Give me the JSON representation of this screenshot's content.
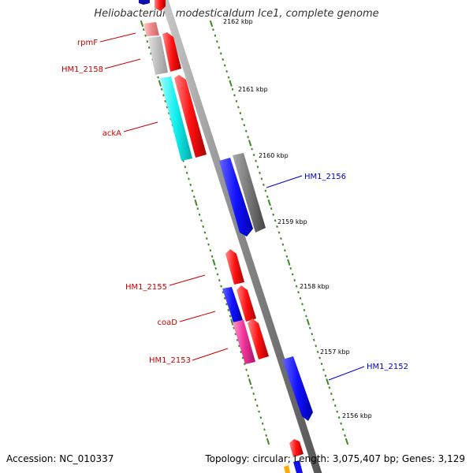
{
  "title": "Heliobacterium modesticaldum Ice1, complete genome",
  "footer": {
    "accession": "Accession: NC_010337",
    "topology": "Topology: circular; Length: 3,075,407 bp; Genes: 3,129"
  },
  "colors": {
    "backbone": "#888888",
    "tick": "#3a8a1f",
    "forward_label": "#cc0000",
    "reverse_label": "#0000cc",
    "gene_red": "#ee1111",
    "gene_blue": "#1111ee",
    "gene_gray": "#777777",
    "gene_lightgray": "#bbbbbb",
    "gene_cyan": "#11dddd",
    "gene_magenta": "#ee3399",
    "gene_pink": "#ee8888"
  },
  "kbp_labels": [
    "2162 kbp",
    "2161 kbp",
    "2160 kbp",
    "2159 kbp",
    "2158 kbp",
    "2157 kbp",
    "2156 kbp"
  ],
  "gene_labels": {
    "rpmF": "rpmF",
    "HM1_2158": "HM1_2158",
    "ackA": "ackA",
    "HM1_2156": "HM1_2156",
    "HM1_2155": "HM1_2155",
    "coaD": "coaD",
    "HM1_2153": "HM1_2153",
    "HM1_2152": "HM1_2152"
  }
}
